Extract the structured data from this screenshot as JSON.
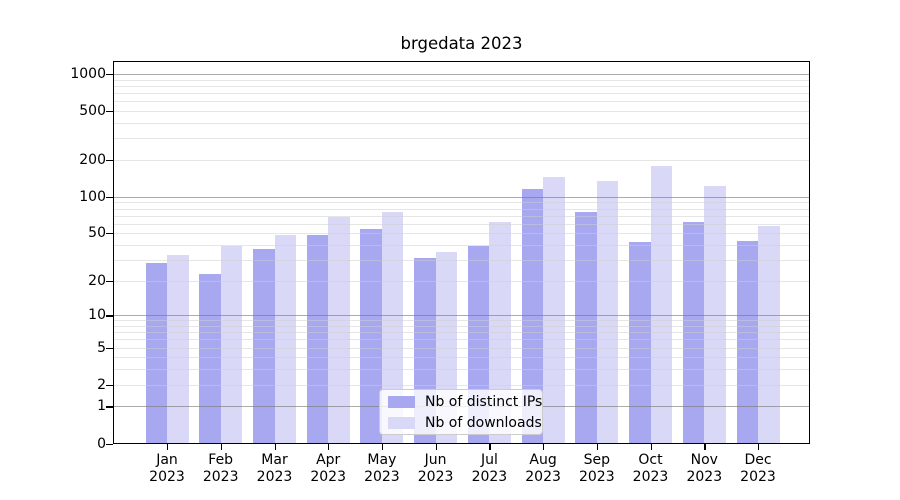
{
  "figure": {
    "background_color": "#ffffff",
    "text_color": "#000000"
  },
  "chart_data": {
    "type": "bar",
    "title": "brgedata 2023",
    "xlabel": "",
    "ylabel": "",
    "y_scale": "log1p-symlog",
    "y_ticks": [
      0,
      1,
      2,
      5,
      10,
      20,
      50,
      100,
      200,
      500,
      1000
    ],
    "ylim": [
      0,
      1270
    ],
    "grid": "horizontal major and minor gridlines drawn over bars",
    "legend_position": "lower center",
    "categories": [
      "Jan",
      "Feb",
      "Mar",
      "Apr",
      "May",
      "Jun",
      "Jul",
      "Aug",
      "Sep",
      "Oct",
      "Nov",
      "Dec"
    ],
    "category_year_line": "2023",
    "series": [
      {
        "name": "Nb of distinct IPs",
        "color": "#a8a8f0",
        "values": [
          28,
          23,
          37,
          48,
          54,
          31,
          39,
          115,
          75,
          42,
          62,
          43
        ]
      },
      {
        "name": "Nb of downloads",
        "color": "#d9d9f7",
        "values": [
          33,
          39,
          48,
          68,
          75,
          35,
          62,
          145,
          135,
          180,
          122,
          57
        ]
      }
    ],
    "colors": {
      "major_grid": "#a7a7a7",
      "minor_grid": "#ececec",
      "spine": "#000000",
      "legend_border": "#cccccc"
    }
  }
}
